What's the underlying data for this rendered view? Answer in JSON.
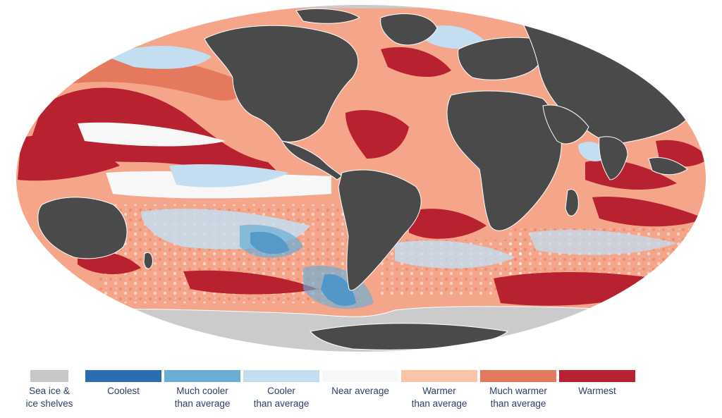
{
  "map": {
    "ocean_base_color": "#f4a58a",
    "land_color": "#4a4a4a",
    "ice_color": "#cbcbcb",
    "coastline_color": "#ffffff"
  },
  "legend": {
    "items": [
      {
        "id": "sea-ice",
        "line1": "Sea ice &",
        "line2": "ice shelves",
        "color": "#c8c8c8"
      },
      {
        "id": "coolest",
        "line1": "Coolest",
        "line2": "",
        "color": "#2a6db0"
      },
      {
        "id": "much-cooler",
        "line1": "Much cooler",
        "line2": "than average",
        "color": "#6aaed6"
      },
      {
        "id": "cooler",
        "line1": "Cooler",
        "line2": "than average",
        "color": "#c3def0"
      },
      {
        "id": "near-average",
        "line1": "Near average",
        "line2": "",
        "color": "#f7f7f7"
      },
      {
        "id": "warmer",
        "line1": "Warmer",
        "line2": "than average",
        "color": "#f9c4a8"
      },
      {
        "id": "much-warmer",
        "line1": "Much warmer",
        "line2": "than average",
        "color": "#e5795d"
      },
      {
        "id": "warmest",
        "line1": "Warmest",
        "line2": "",
        "color": "#b8212f"
      }
    ]
  }
}
